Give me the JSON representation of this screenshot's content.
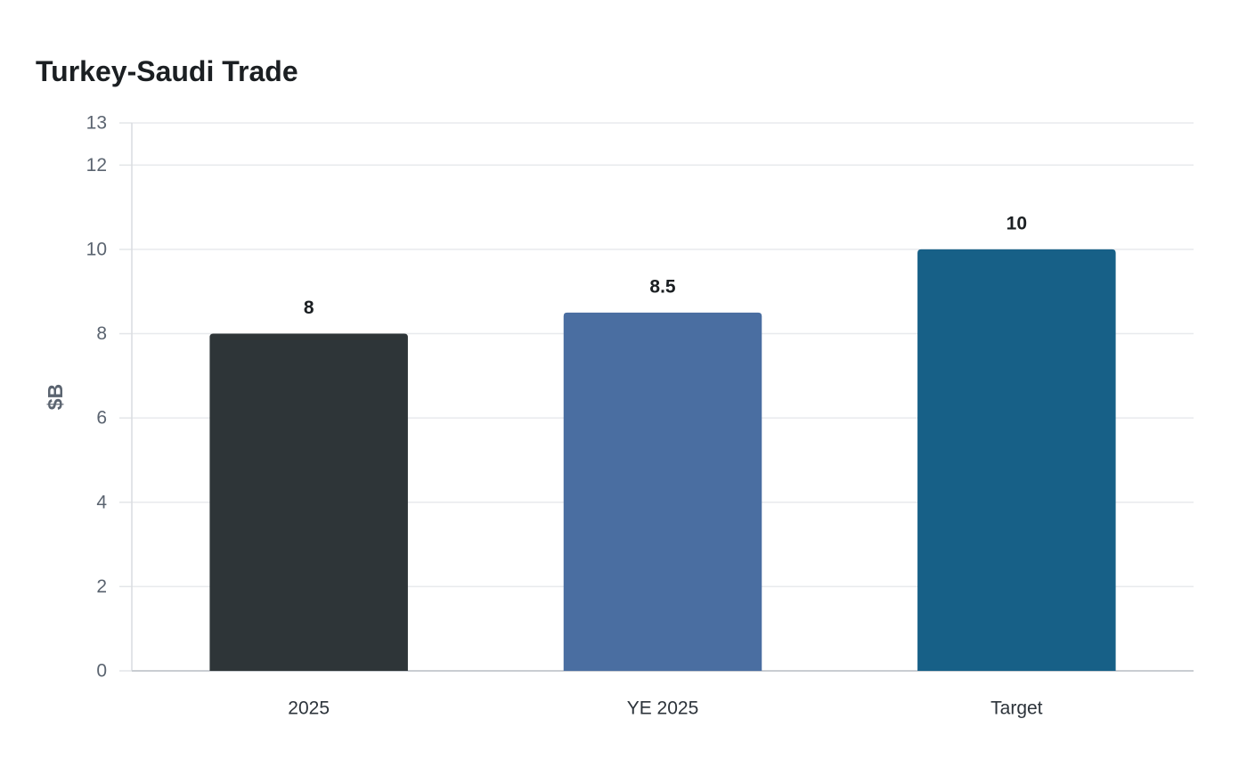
{
  "chart_data": {
    "type": "bar",
    "title": "Turkey-Saudi Trade",
    "xlabel": "",
    "ylabel": "$B",
    "categories": [
      "2025",
      "YE 2025",
      "Target"
    ],
    "values": [
      8,
      8.5,
      10
    ],
    "data_labels": [
      "8",
      "8.5",
      "10"
    ],
    "bar_colors": [
      "#2e3538",
      "#4a6ea1",
      "#176087"
    ],
    "ylim": [
      0,
      13
    ],
    "yticks": [
      0,
      2,
      4,
      6,
      8,
      10,
      12,
      13
    ],
    "grid": true,
    "legend": "none"
  }
}
